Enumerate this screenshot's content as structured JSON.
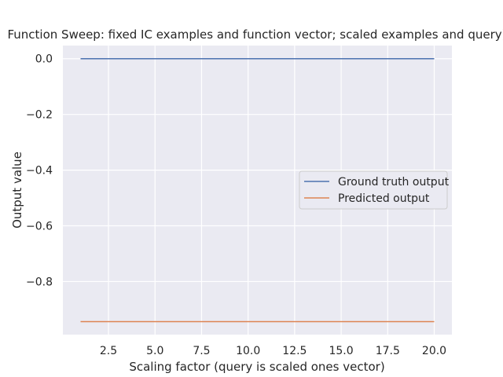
{
  "chart_data": {
    "type": "line",
    "title": "Function Sweep: fixed IC examples and function vector; scaled examples and query)",
    "xlabel": "Scaling factor (query is scaled ones vector)",
    "ylabel": "Output value",
    "xlim": [
      0.05,
      20.95
    ],
    "ylim": [
      -0.9905,
      0.0472
    ],
    "xticks": [
      2.5,
      5.0,
      7.5,
      10.0,
      12.5,
      15.0,
      17.5,
      20.0
    ],
    "xtick_labels": [
      "2.5",
      "5.0",
      "7.5",
      "10.0",
      "12.5",
      "15.0",
      "17.5",
      "20.0"
    ],
    "yticks": [
      0.0,
      -0.2,
      -0.4,
      -0.6,
      -0.8
    ],
    "ytick_labels": [
      "0.0",
      "−0.2",
      "−0.4",
      "−0.6",
      "−0.8"
    ],
    "grid": true,
    "legend_position": "center-right",
    "background_color": "#eaeaf2",
    "grid_color": "#ffffff",
    "series": [
      {
        "name": "Ground truth output",
        "color": "#4c72b0",
        "x": [
          1,
          20
        ],
        "y": [
          0.0,
          0.0
        ]
      },
      {
        "name": "Predicted output",
        "color": "#dd8452",
        "x": [
          1,
          20
        ],
        "y": [
          -0.944,
          -0.944
        ]
      }
    ]
  }
}
